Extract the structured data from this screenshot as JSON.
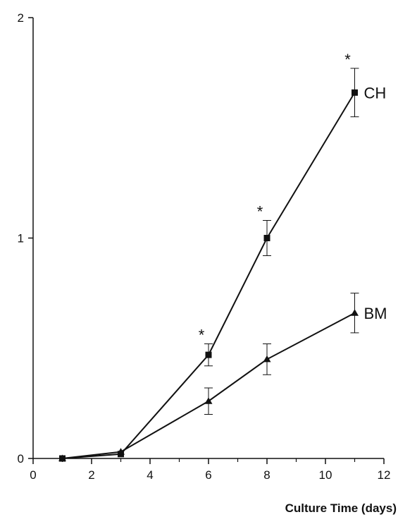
{
  "chart_data": {
    "type": "line",
    "title": "",
    "xlabel": "Culture Time (days)",
    "ylabel": "",
    "xlim": [
      0,
      12
    ],
    "ylim": [
      0,
      2
    ],
    "x_ticks": [
      "0",
      "2",
      "4",
      "6",
      "8",
      "10",
      "12"
    ],
    "y_ticks": [
      "0",
      "1",
      "2"
    ],
    "grid": false,
    "series": [
      {
        "name": "CH",
        "marker": "square",
        "color": "#111111",
        "points": [
          {
            "x": 1,
            "y": 0.0,
            "err": 0
          },
          {
            "x": 3,
            "y": 0.02,
            "err": 0
          },
          {
            "x": 6,
            "y": 0.47,
            "err": 0.05
          },
          {
            "x": 8,
            "y": 1.0,
            "err": 0.08
          },
          {
            "x": 11,
            "y": 1.66,
            "err": 0.11
          }
        ]
      },
      {
        "name": "BM",
        "marker": "triangle",
        "color": "#111111",
        "points": [
          {
            "x": 1,
            "y": 0.0,
            "err": 0
          },
          {
            "x": 3,
            "y": 0.03,
            "err": 0
          },
          {
            "x": 6,
            "y": 0.26,
            "err": 0.06
          },
          {
            "x": 8,
            "y": 0.45,
            "err": 0.07
          },
          {
            "x": 11,
            "y": 0.66,
            "err": 0.09
          }
        ]
      }
    ],
    "significance": [
      {
        "x": 6,
        "mark": "*"
      },
      {
        "x": 8,
        "mark": "*"
      },
      {
        "x": 11,
        "mark": "*"
      }
    ]
  }
}
